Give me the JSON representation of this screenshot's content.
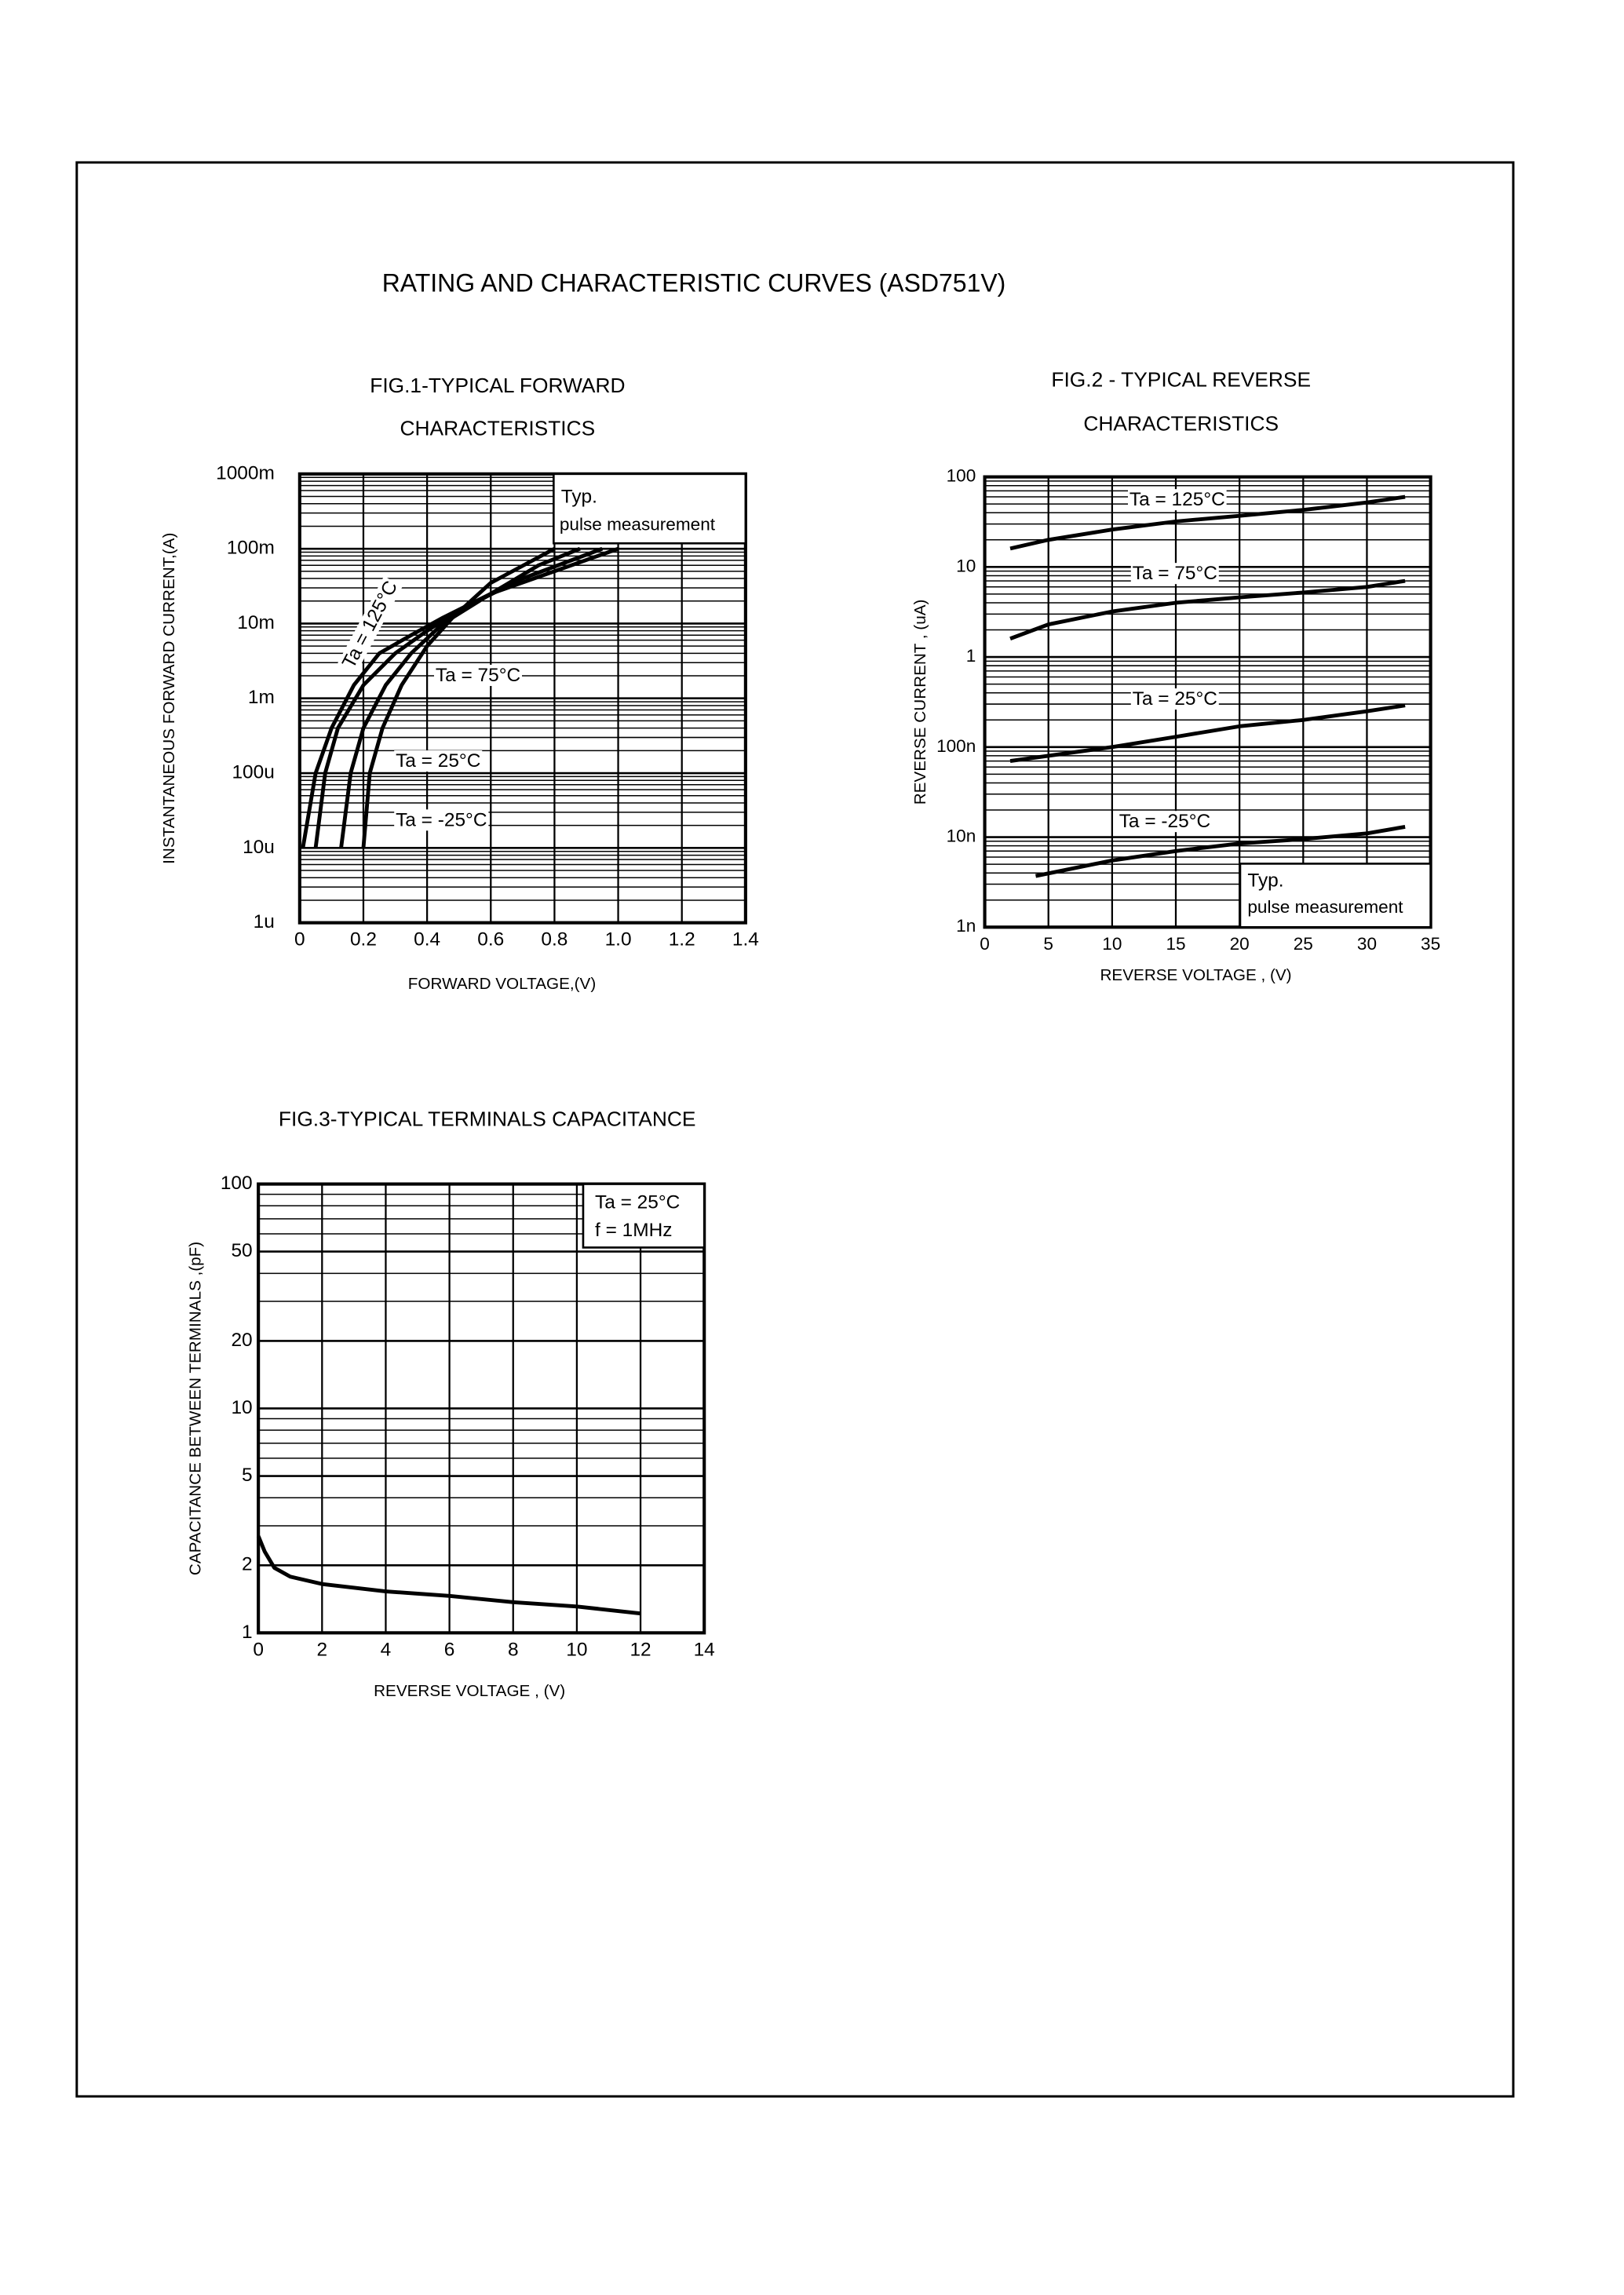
{
  "title": "RATING AND CHARACTERISTIC CURVES (ASD751V)",
  "chart_data": [
    {
      "type": "line",
      "title": [
        "FIG.1-TYPICAL FORWARD",
        "CHARACTERISTICS"
      ],
      "x_label": "FORWARD VOLTAGE,(V)",
      "y_label": "INSTANTANEOUS FORWARD CURRENT,(A)",
      "xlim": [
        0,
        1.4
      ],
      "xticks": [
        0,
        0.2,
        0.4,
        0.6,
        0.8,
        {
          "value": 1,
          "label": "1.0"
        },
        1.2,
        1.4
      ],
      "ylim": [
        1e-06,
        1
      ],
      "y_log": true,
      "grid": true,
      "minor_grid": true,
      "yticks": [
        {
          "value": 1e-06,
          "label": "1u"
        },
        {
          "value": 1e-05,
          "label": "10u"
        },
        {
          "value": 0.0001,
          "label": "100u"
        },
        {
          "value": 0.001,
          "label": "1m"
        },
        {
          "value": 0.01,
          "label": "10m"
        },
        {
          "value": 0.1,
          "label": "100m"
        },
        {
          "value": 1,
          "label": "1000m"
        }
      ],
      "annotations": [
        "Typ.",
        "pulse measurement"
      ],
      "series": [
        {
          "name": "Ta = 125°C",
          "color": "#000000",
          "x": [
            0.01,
            0.05,
            0.1,
            0.17,
            0.25,
            0.35,
            0.45,
            0.6,
            0.8,
            1.0
          ],
          "values": [
            1e-05,
            0.0001,
            0.0004,
            0.0015,
            0.004,
            0.007,
            0.012,
            0.025,
            0.05,
            0.1
          ]
        },
        {
          "name": "Ta = 75°C",
          "color": "#000000",
          "x": [
            0.05,
            0.08,
            0.12,
            0.2,
            0.3,
            0.4,
            0.5,
            0.7,
            0.95
          ],
          "values": [
            1e-05,
            0.0001,
            0.0004,
            0.0015,
            0.004,
            0.008,
            0.015,
            0.04,
            0.1
          ]
        },
        {
          "name": "Ta = 25°C",
          "color": "#000000",
          "x": [
            0.13,
            0.16,
            0.2,
            0.27,
            0.35,
            0.45,
            0.6,
            0.75,
            0.88
          ],
          "values": [
            1e-05,
            0.0001,
            0.0004,
            0.0015,
            0.004,
            0.01,
            0.025,
            0.06,
            0.1
          ]
        },
        {
          "name": "Ta = -25°C",
          "color": "#000000",
          "x": [
            0.2,
            0.22,
            0.26,
            0.32,
            0.4,
            0.48,
            0.6,
            0.8
          ],
          "values": [
            1e-05,
            0.0001,
            0.0004,
            0.0015,
            0.005,
            0.012,
            0.035,
            0.1
          ]
        }
      ]
    },
    {
      "type": "line",
      "title": [
        "FIG.2 - TYPICAL REVERSE",
        "CHARACTERISTICS"
      ],
      "x_label": "REVERSE VOLTAGE , (V)",
      "y_label": "REVERSE CURRENT , (uA)",
      "xlim": [
        0,
        35
      ],
      "xticks": [
        0,
        5,
        10,
        15,
        20,
        25,
        30,
        35
      ],
      "ylim": [
        0.001,
        100
      ],
      "y_log": true,
      "grid": true,
      "minor_grid": true,
      "yticks": [
        {
          "value": 0.001,
          "label": "1n"
        },
        {
          "value": 0.01,
          "label": "10n"
        },
        {
          "value": 0.1,
          "label": "100n"
        },
        1,
        10,
        100
      ],
      "annotations": [
        "Typ.",
        "pulse measurement"
      ],
      "series": [
        {
          "name": "Ta = 125°C",
          "color": "#000000",
          "x": [
            2,
            5,
            10,
            15,
            20,
            25,
            30,
            33
          ],
          "values": [
            16,
            20,
            26,
            32,
            37,
            43,
            52,
            60
          ]
        },
        {
          "name": "Ta = 75°C",
          "color": "#000000",
          "x": [
            2,
            5,
            10,
            15,
            20,
            25,
            30,
            33
          ],
          "values": [
            1.6,
            2.3,
            3.2,
            4.0,
            4.6,
            5.2,
            6.0,
            7.0
          ]
        },
        {
          "name": "Ta = 25°C",
          "color": "#000000",
          "x": [
            2,
            5,
            10,
            15,
            20,
            25,
            30,
            33
          ],
          "values": [
            0.07,
            0.08,
            0.1,
            0.13,
            0.17,
            0.2,
            0.25,
            0.29
          ]
        },
        {
          "name": "Ta = -25°C",
          "color": "#000000",
          "x": [
            4,
            10,
            15,
            20,
            25,
            30,
            33
          ],
          "values": [
            0.0037,
            0.0055,
            0.007,
            0.0085,
            0.0095,
            0.011,
            0.013
          ]
        }
      ]
    },
    {
      "type": "line",
      "title": [
        "FIG.3-TYPICAL TERMINALS CAPACITANCE"
      ],
      "x_label": "REVERSE VOLTAGE , (V)",
      "y_label": "CAPACITANCE BETWEEN TERMINALS ,(pF)",
      "xlim": [
        0,
        14
      ],
      "xticks": [
        0,
        2,
        4,
        6,
        8,
        10,
        12,
        14
      ],
      "ylim": [
        1,
        100
      ],
      "y_log": true,
      "grid": true,
      "minor_grid": true,
      "yticks": [
        1,
        2,
        5,
        10,
        20,
        50,
        100
      ],
      "annotations": [
        "Ta = 25°C",
        "f = 1MHz"
      ],
      "series": [
        {
          "color": "#000000",
          "x": [
            0,
            0.2,
            0.5,
            1,
            2,
            4,
            6,
            8,
            10,
            12
          ],
          "values": [
            2.7,
            2.3,
            1.95,
            1.78,
            1.65,
            1.53,
            1.46,
            1.37,
            1.31,
            1.22
          ]
        }
      ]
    }
  ]
}
